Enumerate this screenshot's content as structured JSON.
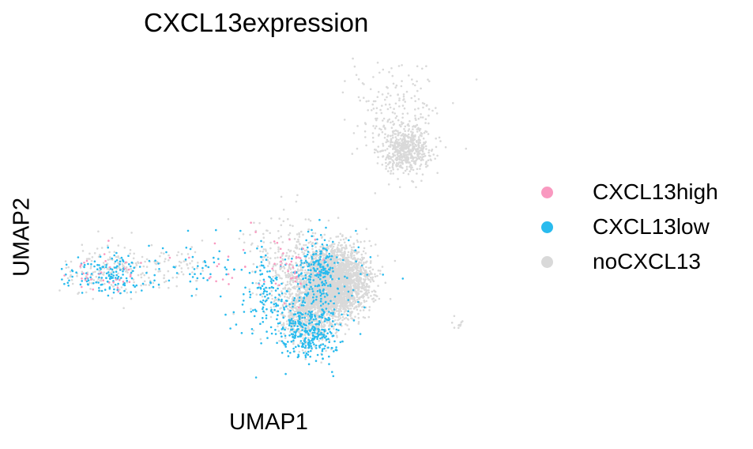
{
  "chart_data": {
    "type": "scatter",
    "title": "CXCL13expression",
    "xlabel": "UMAP1",
    "ylabel": "UMAP2",
    "grid": false,
    "axes_visible": false,
    "legend_position": "right",
    "series": [
      {
        "name": "noCXCL13",
        "color": "#d9d9d9",
        "clusters": [
          {
            "cx": 7.5,
            "cy": 3.2,
            "sx": 1.4,
            "sy": 1.3,
            "n": 2600
          },
          {
            "cx": 5.2,
            "cy": 1.2,
            "sx": 1.1,
            "sy": 1.4,
            "n": 900
          },
          {
            "cx": 3.2,
            "cy": 4.0,
            "sx": 1.8,
            "sy": 2.0,
            "n": 250
          },
          {
            "cx": 13.5,
            "cy": 13.3,
            "sx": 1.0,
            "sy": 0.8,
            "n": 500
          },
          {
            "cx": 12.8,
            "cy": 15.8,
            "sx": 2.0,
            "sy": 2.2,
            "n": 200
          },
          {
            "cx": -12.0,
            "cy": 4.0,
            "sx": 2.2,
            "sy": 0.9,
            "n": 180
          },
          {
            "cx": -6.5,
            "cy": 4.3,
            "sx": 1.8,
            "sy": 0.8,
            "n": 60
          },
          {
            "cx": 18.0,
            "cy": -0.2,
            "sx": 0.3,
            "sy": 0.5,
            "n": 10
          }
        ]
      },
      {
        "name": "CXCL13low",
        "color": "#29bbee",
        "clusters": [
          {
            "cx": 5.3,
            "cy": -0.7,
            "sx": 1.3,
            "sy": 1.1,
            "n": 320
          },
          {
            "cx": 5.8,
            "cy": 3.8,
            "sx": 0.9,
            "sy": 1.4,
            "n": 210
          },
          {
            "cx": 1.6,
            "cy": 2.0,
            "sx": 1.1,
            "sy": 1.8,
            "n": 130
          },
          {
            "cx": -12.3,
            "cy": 3.8,
            "sx": 2.0,
            "sy": 0.8,
            "n": 150
          },
          {
            "cx": -4.0,
            "cy": 4.2,
            "sx": 2.2,
            "sy": 1.0,
            "n": 45
          },
          {
            "cx": 9.0,
            "cy": 3.0,
            "sx": 1.8,
            "sy": 2.0,
            "n": 30
          }
        ]
      },
      {
        "name": "CXCL13high",
        "color": "#f999c0",
        "clusters": [
          {
            "cx": -12.3,
            "cy": 4.0,
            "sx": 2.0,
            "sy": 0.8,
            "n": 35
          },
          {
            "cx": 3.2,
            "cy": 4.6,
            "sx": 1.5,
            "sy": 1.4,
            "n": 40
          },
          {
            "cx": -1.5,
            "cy": 3.8,
            "sx": 2.0,
            "sy": 1.0,
            "n": 15
          }
        ]
      }
    ],
    "xlim": [
      -16.5,
      20.5
    ],
    "ylim": [
      -5.5,
      20.5
    ]
  },
  "legend": {
    "items": [
      {
        "label": "CXCL13high",
        "color": "#f999c0"
      },
      {
        "label": "CXCL13low",
        "color": "#29bbee"
      },
      {
        "label": "noCXCL13",
        "color": "#d9d9d9"
      }
    ]
  }
}
